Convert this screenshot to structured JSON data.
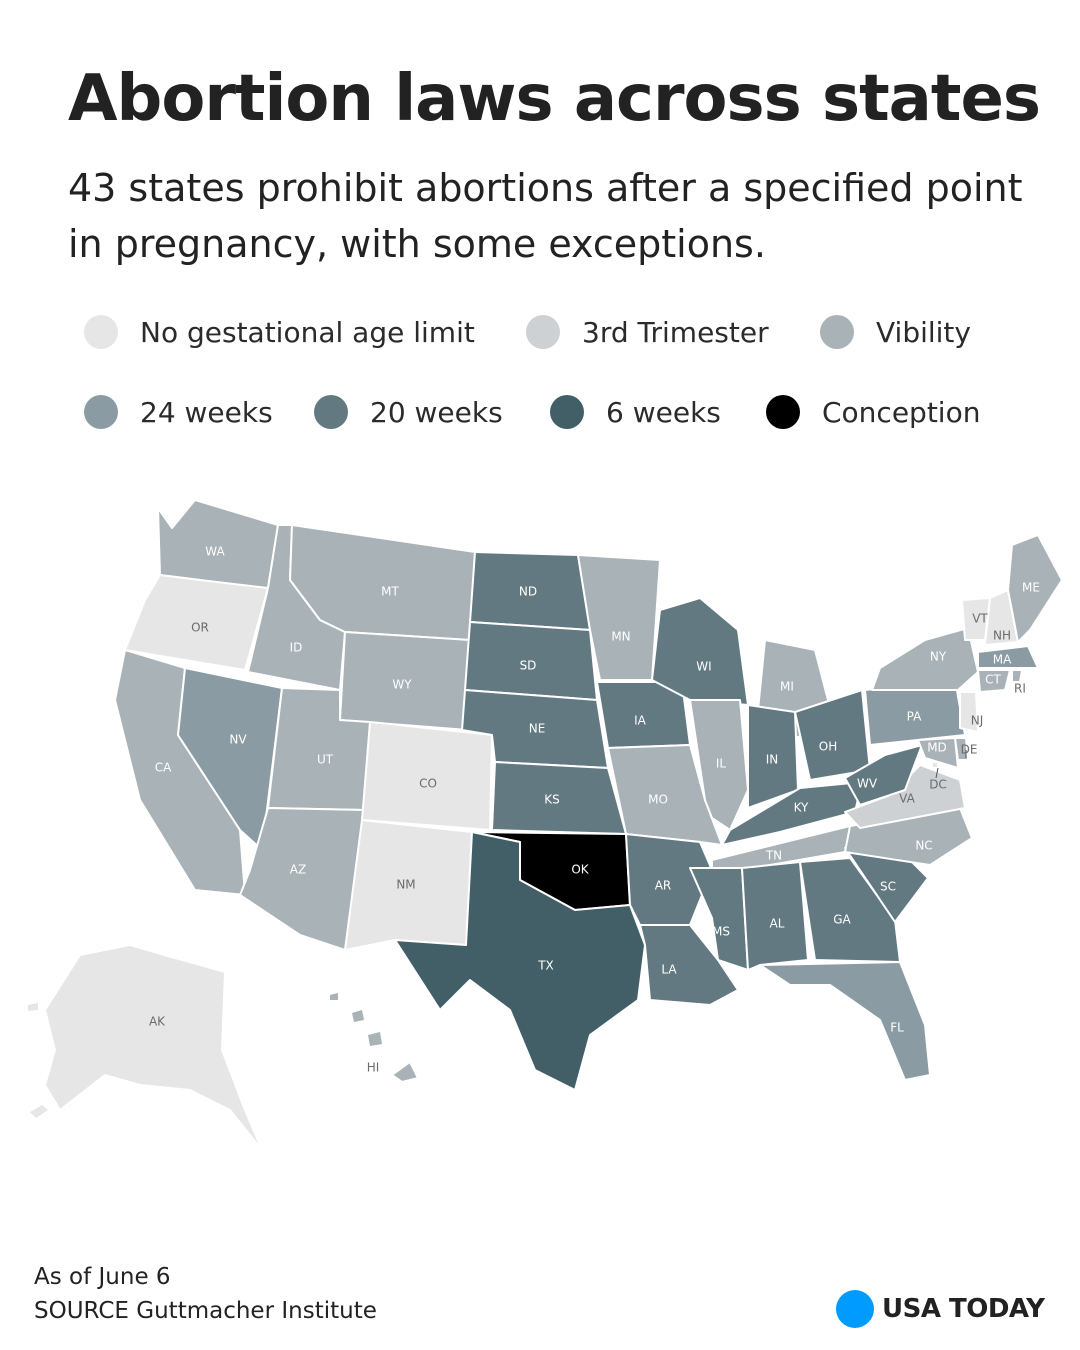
{
  "header": {
    "title": "Abortion laws across states",
    "subtitle": "43 states prohibit abortions after a specified point in pregnancy, with some exceptions."
  },
  "legend": [
    {
      "id": "none",
      "label": "No gestational age limit",
      "color": "#e6e6e6"
    },
    {
      "id": "third",
      "label": "3rd Trimester",
      "color": "#cdd1d4"
    },
    {
      "id": "viability",
      "label": "Vibility",
      "color": "#a8b2b7"
    },
    {
      "id": "w24",
      "label": "24 weeks",
      "color": "#8a9ba3"
    },
    {
      "id": "w20",
      "label": "20 weeks",
      "color": "#637981"
    },
    {
      "id": "w6",
      "label": "6 weeks",
      "color": "#425f68"
    },
    {
      "id": "conception",
      "label": "Conception",
      "color": "#000000"
    }
  ],
  "states": [
    {
      "abbr": "WA",
      "cat": "viability"
    },
    {
      "abbr": "OR",
      "cat": "none"
    },
    {
      "abbr": "CA",
      "cat": "viability"
    },
    {
      "abbr": "NV",
      "cat": "w24"
    },
    {
      "abbr": "ID",
      "cat": "viability"
    },
    {
      "abbr": "MT",
      "cat": "viability"
    },
    {
      "abbr": "WY",
      "cat": "viability"
    },
    {
      "abbr": "UT",
      "cat": "viability"
    },
    {
      "abbr": "AZ",
      "cat": "viability"
    },
    {
      "abbr": "CO",
      "cat": "none"
    },
    {
      "abbr": "NM",
      "cat": "none"
    },
    {
      "abbr": "ND",
      "cat": "w20"
    },
    {
      "abbr": "SD",
      "cat": "w20"
    },
    {
      "abbr": "NE",
      "cat": "w20"
    },
    {
      "abbr": "KS",
      "cat": "w20"
    },
    {
      "abbr": "OK",
      "cat": "conception"
    },
    {
      "abbr": "TX",
      "cat": "w6"
    },
    {
      "abbr": "MN",
      "cat": "viability"
    },
    {
      "abbr": "IA",
      "cat": "w20"
    },
    {
      "abbr": "MO",
      "cat": "viability"
    },
    {
      "abbr": "AR",
      "cat": "w20"
    },
    {
      "abbr": "LA",
      "cat": "w20"
    },
    {
      "abbr": "WI",
      "cat": "w20"
    },
    {
      "abbr": "IL",
      "cat": "viability"
    },
    {
      "abbr": "MI",
      "cat": "viability"
    },
    {
      "abbr": "IN",
      "cat": "w20"
    },
    {
      "abbr": "OH",
      "cat": "w20"
    },
    {
      "abbr": "KY",
      "cat": "w20"
    },
    {
      "abbr": "TN",
      "cat": "viability"
    },
    {
      "abbr": "MS",
      "cat": "w20"
    },
    {
      "abbr": "AL",
      "cat": "w20"
    },
    {
      "abbr": "GA",
      "cat": "w20"
    },
    {
      "abbr": "FL",
      "cat": "w24"
    },
    {
      "abbr": "SC",
      "cat": "w20"
    },
    {
      "abbr": "NC",
      "cat": "viability"
    },
    {
      "abbr": "VA",
      "cat": "third"
    },
    {
      "abbr": "WV",
      "cat": "w20"
    },
    {
      "abbr": "PA",
      "cat": "w24"
    },
    {
      "abbr": "NY",
      "cat": "viability"
    },
    {
      "abbr": "VT",
      "cat": "none"
    },
    {
      "abbr": "NH",
      "cat": "none"
    },
    {
      "abbr": "ME",
      "cat": "viability"
    },
    {
      "abbr": "MA",
      "cat": "w24"
    },
    {
      "abbr": "RI",
      "cat": "viability"
    },
    {
      "abbr": "CT",
      "cat": "viability"
    },
    {
      "abbr": "NJ",
      "cat": "none"
    },
    {
      "abbr": "DE",
      "cat": "viability"
    },
    {
      "abbr": "MD",
      "cat": "viability"
    },
    {
      "abbr": "DC",
      "cat": "none"
    },
    {
      "abbr": "AK",
      "cat": "none"
    },
    {
      "abbr": "HI",
      "cat": "viability"
    }
  ],
  "footer": {
    "date_note": "As of June 6",
    "source": "SOURCE Guttmacher Institute",
    "brand": "USA TODAY"
  }
}
